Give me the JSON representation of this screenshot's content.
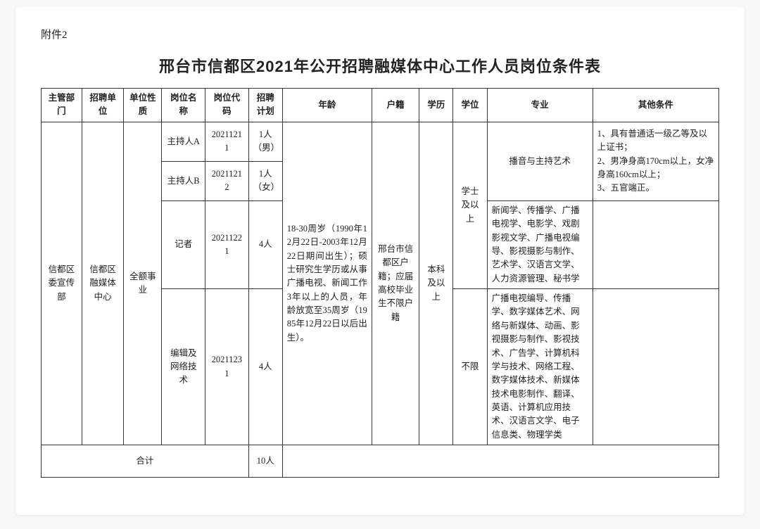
{
  "attachment_label": "附件2",
  "title": "邢台市信都区2021年公开招聘融媒体中心工作人员岗位条件表",
  "headers": {
    "c1": "主管部门",
    "c2": "招聘单位",
    "c3": "单位性质",
    "c4": "岗位名称",
    "c5": "岗位代码",
    "c6": "招聘计划",
    "c7": "年龄",
    "c8": "户籍",
    "c9": "学历",
    "c10": "学位",
    "c11": "专业",
    "c12": "其他条件"
  },
  "shared": {
    "dept": "信都区委宣传部",
    "unit": "信都区融媒体中心",
    "nature": "全额事业",
    "age": "18-30周岁（1990年12月22日-2003年12月22日期间出生）；硕士研究生学历或从事广播电视、新闻工作3年以上的人员，年龄放宽至35周岁（1985年12月22日以后出生）。",
    "huji": "邢台市信都区户籍；应届高校毕业生不限户籍",
    "edu": "本科及以上"
  },
  "degree": {
    "top": "学士及以上",
    "bottom": "不限"
  },
  "rows": [
    {
      "pos": "主持人A",
      "code": "20211211",
      "plan": "1人\n（男）"
    },
    {
      "pos": "主持人B",
      "code": "20211212",
      "plan": "1人\n（女）"
    },
    {
      "pos": "记者",
      "code": "20211221",
      "plan": "4人"
    },
    {
      "pos": "编辑及网络技术",
      "code": "20211231",
      "plan": "4人"
    }
  ],
  "majors": {
    "block1": "播音与主持艺术",
    "block2": "新闻学、传播学、广播电视学、电影学、戏剧影视文学、广播电视编导、影视摄影与制作、艺术学、汉语言文学、人力资源管理、秘书学",
    "block3": "广播电视编导、传播学、数字媒体艺术、网络与新媒体、动画、影视摄影与制作、影视技术、广告学、计算机科学与技术、网络工程、数字媒体技术、新媒体技术电影制作、翻译、英语、计算机应用技术、汉语言文学、电子信息类、物理学类"
  },
  "other": {
    "block1": "1、具有普通话一级乙等及以上证书；\n2、男净身高170cm以上，女净身高160cm以上；\n3、五官端正。"
  },
  "total": {
    "label": "合计",
    "sum": "10人"
  },
  "style": {
    "bg": "#ffffff",
    "border": "#333333",
    "font_body_pt": 12.5,
    "font_title_pt": 22,
    "font_header_pt": 13
  }
}
